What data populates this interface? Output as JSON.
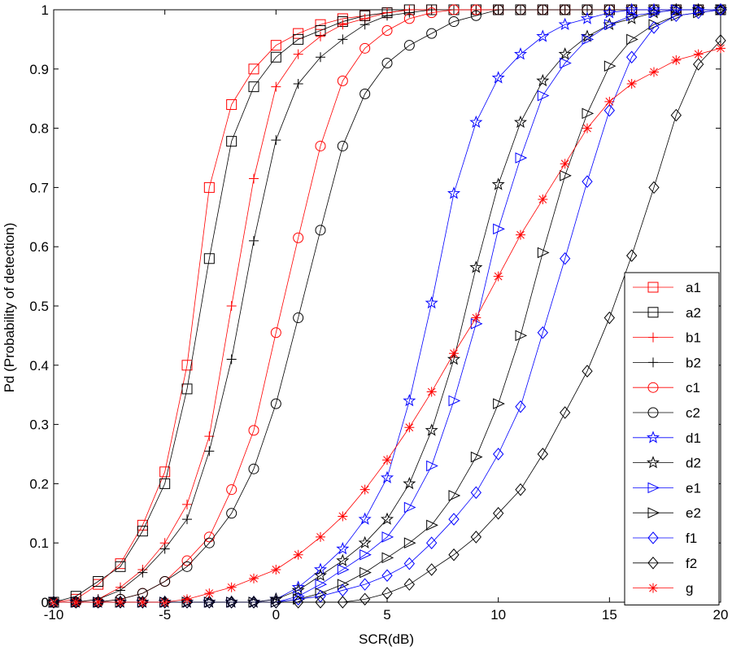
{
  "chart_data": {
    "type": "line",
    "title": "",
    "xlabel": "SCR(dB)",
    "ylabel": "Pd (Probability of detection)",
    "xlim": [
      -10,
      20
    ],
    "ylim": [
      0,
      1
    ],
    "xticks": [
      -10,
      -5,
      0,
      5,
      10,
      15,
      20
    ],
    "yticks": [
      0,
      0.1,
      0.2,
      0.3,
      0.4,
      0.5,
      0.6,
      0.7,
      0.8,
      0.9,
      1
    ],
    "ytick_labels": [
      "0",
      "0.1",
      "0.2",
      "0.3",
      "0.4",
      "0.5",
      "0.6",
      "0.7",
      "0.8",
      "0.9",
      "1"
    ],
    "grid": false,
    "legend_position": "bottom-right",
    "x": [
      -10,
      -9,
      -8,
      -7,
      -6,
      -5,
      -4,
      -3,
      -2,
      -1,
      0,
      1,
      2,
      3,
      4,
      5,
      6,
      7,
      8,
      9,
      10,
      11,
      12,
      13,
      14,
      15,
      16,
      17,
      18,
      19,
      20
    ],
    "series": [
      {
        "name": "a1",
        "color": "#ff0000",
        "marker": "square",
        "values": [
          0,
          0.005,
          0.03,
          0.065,
          0.13,
          0.22,
          0.4,
          0.7,
          0.84,
          0.9,
          0.94,
          0.96,
          0.975,
          0.985,
          0.99,
          0.995,
          1,
          1,
          1,
          1,
          1,
          1,
          1,
          1,
          1,
          1,
          1,
          1,
          1,
          1,
          1
        ]
      },
      {
        "name": "a2",
        "color": "#000000",
        "marker": "square",
        "values": [
          0,
          0.01,
          0.035,
          0.06,
          0.12,
          0.2,
          0.36,
          0.58,
          0.778,
          0.87,
          0.92,
          0.95,
          0.965,
          0.98,
          0.99,
          0.995,
          1,
          1,
          1,
          1,
          1,
          1,
          1,
          1,
          1,
          1,
          1,
          1,
          1,
          1,
          1
        ]
      },
      {
        "name": "b1",
        "color": "#ff0000",
        "marker": "plus",
        "values": [
          0,
          0,
          0.005,
          0.025,
          0.055,
          0.1,
          0.165,
          0.28,
          0.5,
          0.715,
          0.87,
          0.925,
          0.955,
          0.975,
          0.985,
          0.995,
          1,
          1,
          1,
          1,
          1,
          1,
          1,
          1,
          1,
          1,
          1,
          1,
          1,
          1,
          1
        ]
      },
      {
        "name": "b2",
        "color": "#000000",
        "marker": "plus",
        "values": [
          0,
          0,
          0.005,
          0.02,
          0.05,
          0.09,
          0.14,
          0.255,
          0.41,
          0.61,
          0.78,
          0.875,
          0.92,
          0.95,
          0.975,
          0.99,
          0.995,
          1,
          1,
          1,
          1,
          1,
          1,
          1,
          1,
          1,
          1,
          1,
          1,
          1,
          1
        ]
      },
      {
        "name": "c1",
        "color": "#ff0000",
        "marker": "circle",
        "values": [
          0,
          0,
          0,
          0.005,
          0.015,
          0.035,
          0.07,
          0.11,
          0.19,
          0.29,
          0.455,
          0.615,
          0.77,
          0.88,
          0.935,
          0.965,
          0.985,
          0.995,
          1,
          1,
          1,
          1,
          1,
          1,
          1,
          1,
          1,
          1,
          1,
          1,
          1
        ]
      },
      {
        "name": "c2",
        "color": "#000000",
        "marker": "circle",
        "values": [
          0,
          0,
          0,
          0.005,
          0.015,
          0.035,
          0.06,
          0.1,
          0.15,
          0.225,
          0.335,
          0.48,
          0.628,
          0.77,
          0.858,
          0.91,
          0.94,
          0.96,
          0.98,
          0.99,
          1,
          1,
          1,
          1,
          1,
          1,
          1,
          1,
          1,
          1,
          1
        ]
      },
      {
        "name": "d1",
        "color": "#0000ff",
        "marker": "star",
        "values": [
          0,
          0,
          0,
          0,
          0,
          0,
          0,
          0,
          0,
          0,
          0.005,
          0.025,
          0.055,
          0.09,
          0.14,
          0.21,
          0.34,
          0.505,
          0.69,
          0.81,
          0.885,
          0.925,
          0.955,
          0.975,
          0.985,
          0.995,
          1,
          1,
          1,
          1,
          1
        ]
      },
      {
        "name": "d2",
        "color": "#000000",
        "marker": "star",
        "values": [
          0,
          0,
          0,
          0,
          0,
          0,
          0,
          0,
          0,
          0,
          0.005,
          0.02,
          0.045,
          0.07,
          0.1,
          0.14,
          0.2,
          0.29,
          0.41,
          0.565,
          0.705,
          0.81,
          0.88,
          0.925,
          0.955,
          0.975,
          0.985,
          0.995,
          1,
          1,
          1
        ]
      },
      {
        "name": "e1",
        "color": "#0000ff",
        "marker": "triangle-right",
        "values": [
          0,
          0,
          0,
          0,
          0,
          0,
          0,
          0,
          0,
          0,
          0,
          0.01,
          0.03,
          0.055,
          0.08,
          0.11,
          0.16,
          0.23,
          0.34,
          0.47,
          0.63,
          0.75,
          0.855,
          0.91,
          0.95,
          0.975,
          0.99,
          0.995,
          1,
          1,
          1
        ]
      },
      {
        "name": "e2",
        "color": "#000000",
        "marker": "triangle-right",
        "values": [
          0,
          0,
          0,
          0,
          0,
          0,
          0,
          0,
          0,
          0,
          0,
          0.005,
          0.015,
          0.03,
          0.05,
          0.075,
          0.1,
          0.13,
          0.18,
          0.245,
          0.335,
          0.45,
          0.59,
          0.72,
          0.825,
          0.905,
          0.95,
          0.975,
          0.99,
          0.995,
          1
        ]
      },
      {
        "name": "f1",
        "color": "#0000ff",
        "marker": "diamond",
        "values": [
          0,
          0,
          0,
          0,
          0,
          0,
          0,
          0,
          0,
          0,
          0,
          0.005,
          0.01,
          0.02,
          0.03,
          0.045,
          0.065,
          0.1,
          0.14,
          0.185,
          0.25,
          0.33,
          0.455,
          0.58,
          0.71,
          0.83,
          0.92,
          0.97,
          0.99,
          0.995,
          1
        ]
      },
      {
        "name": "f2",
        "color": "#000000",
        "marker": "diamond",
        "values": [
          0,
          0,
          0,
          0,
          0,
          0,
          0,
          0,
          0,
          0,
          0,
          0,
          0,
          0,
          0.005,
          0.015,
          0.03,
          0.055,
          0.08,
          0.11,
          0.15,
          0.19,
          0.25,
          0.32,
          0.39,
          0.48,
          0.585,
          0.7,
          0.822,
          0.908,
          0.948
        ]
      },
      {
        "name": "g",
        "color": "#ff0000",
        "marker": "asterisk",
        "values": [
          0,
          0,
          0,
          0,
          0,
          0,
          0.005,
          0.015,
          0.025,
          0.04,
          0.055,
          0.08,
          0.11,
          0.145,
          0.19,
          0.24,
          0.295,
          0.355,
          0.42,
          0.48,
          0.55,
          0.62,
          0.68,
          0.74,
          0.8,
          0.845,
          0.875,
          0.895,
          0.915,
          0.925,
          0.935
        ]
      }
    ]
  }
}
